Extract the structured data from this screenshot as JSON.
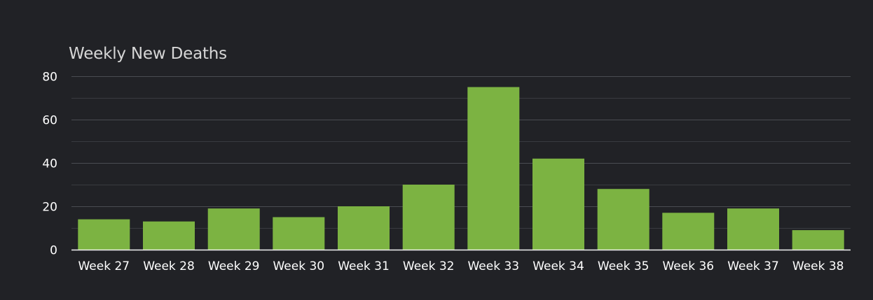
{
  "chart_data": {
    "type": "bar",
    "title": "Weekly New Deaths",
    "categories": [
      "Week 27",
      "Week 28",
      "Week 29",
      "Week 30",
      "Week 31",
      "Week 32",
      "Week 33",
      "Week 34",
      "Week 35",
      "Week 36",
      "Week 37",
      "Week 38"
    ],
    "values": [
      14,
      13,
      19,
      15,
      20,
      30,
      75,
      42,
      28,
      17,
      19,
      9
    ],
    "ylim": [
      0,
      80
    ],
    "yticks": [
      0,
      20,
      40,
      60,
      80
    ],
    "minor_gridlines": [
      10,
      30,
      50,
      70
    ],
    "grid": true,
    "legend": "none",
    "bar_color": "#7cb342"
  }
}
